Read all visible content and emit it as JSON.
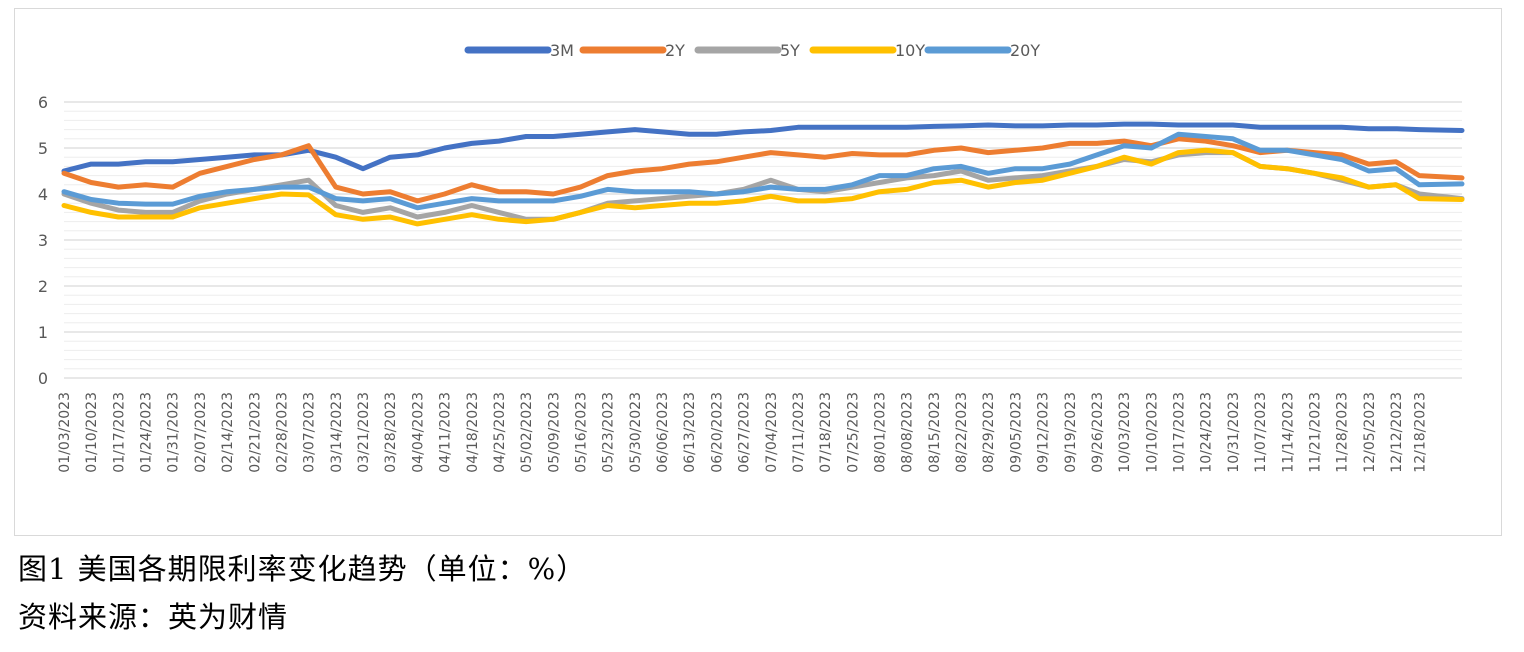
{
  "caption": {
    "figure_title": "图1 美国各期限利率变化趋势（单位：%）",
    "source": "资料来源：英为财情"
  },
  "chart_data": {
    "type": "line",
    "title": "",
    "xlabel": "",
    "ylabel": "",
    "ylim": [
      0,
      6
    ],
    "yticks": [
      "0",
      "1",
      "2",
      "3",
      "4",
      "5",
      "6"
    ],
    "grid": true,
    "legend_position": "top",
    "x_tick_labels": [
      "01/03/2023",
      "01/10/2023",
      "01/17/2023",
      "01/24/2023",
      "01/31/2023",
      "02/07/2023",
      "02/14/2023",
      "02/21/2023",
      "02/28/2023",
      "03/07/2023",
      "03/14/2023",
      "03/21/2023",
      "03/28/2023",
      "04/04/2023",
      "04/11/2023",
      "04/18/2023",
      "04/25/2023",
      "05/02/2023",
      "05/09/2023",
      "05/16/2023",
      "05/23/2023",
      "05/30/2023",
      "06/06/2023",
      "06/13/2023",
      "06/20/2023",
      "06/27/2023",
      "07/04/2023",
      "07/11/2023",
      "07/18/2023",
      "07/25/2023",
      "08/01/2023",
      "08/08/2023",
      "08/15/2023",
      "08/22/2023",
      "08/29/2023",
      "09/05/2023",
      "09/12/2023",
      "09/19/2023",
      "09/26/2023",
      "10/03/2023",
      "10/10/2023",
      "10/17/2023",
      "10/24/2023",
      "10/31/2023",
      "11/07/2023",
      "11/14/2023",
      "11/21/2023",
      "11/28/2023",
      "12/05/2023",
      "12/12/2023",
      "12/18/2023"
    ],
    "x": [
      "01/03/2023",
      "01/10/2023",
      "01/17/2023",
      "01/24/2023",
      "01/31/2023",
      "02/07/2023",
      "02/14/2023",
      "02/21/2023",
      "02/28/2023",
      "03/07/2023",
      "03/14/2023",
      "03/21/2023",
      "03/28/2023",
      "04/04/2023",
      "04/11/2023",
      "04/18/2023",
      "04/25/2023",
      "05/02/2023",
      "05/09/2023",
      "05/16/2023",
      "05/23/2023",
      "05/30/2023",
      "06/06/2023",
      "06/13/2023",
      "06/20/2023",
      "06/27/2023",
      "07/04/2023",
      "07/11/2023",
      "07/18/2023",
      "07/25/2023",
      "08/01/2023",
      "08/08/2023",
      "08/15/2023",
      "08/22/2023",
      "08/29/2023",
      "09/05/2023",
      "09/12/2023",
      "09/19/2023",
      "09/26/2023",
      "10/03/2023",
      "10/10/2023",
      "10/17/2023",
      "10/24/2023",
      "10/31/2023",
      "11/07/2023",
      "11/14/2023",
      "11/21/2023",
      "11/28/2023",
      "12/05/2023",
      "12/12/2023",
      "12/18/2023",
      "12/29/2023"
    ],
    "series": [
      {
        "name": "3M",
        "color": "#4472C4",
        "values": [
          4.5,
          4.65,
          4.65,
          4.7,
          4.7,
          4.75,
          4.8,
          4.85,
          4.85,
          4.95,
          4.8,
          4.55,
          4.8,
          4.85,
          5.0,
          5.1,
          5.15,
          5.25,
          5.25,
          5.3,
          5.35,
          5.4,
          5.35,
          5.3,
          5.3,
          5.35,
          5.38,
          5.45,
          5.45,
          5.45,
          5.45,
          5.45,
          5.47,
          5.48,
          5.5,
          5.48,
          5.48,
          5.5,
          5.5,
          5.52,
          5.52,
          5.5,
          5.5,
          5.5,
          5.45,
          5.45,
          5.45,
          5.45,
          5.42,
          5.42,
          5.4,
          5.38
        ]
      },
      {
        "name": "2Y",
        "color": "#ED7D31",
        "values": [
          4.45,
          4.25,
          4.15,
          4.2,
          4.15,
          4.45,
          4.6,
          4.75,
          4.85,
          5.05,
          4.15,
          4.0,
          4.05,
          3.85,
          4.0,
          4.2,
          4.05,
          4.05,
          4.0,
          4.15,
          4.4,
          4.5,
          4.55,
          4.65,
          4.7,
          4.8,
          4.9,
          4.85,
          4.8,
          4.88,
          4.85,
          4.85,
          4.95,
          5.0,
          4.9,
          4.95,
          5.0,
          5.1,
          5.1,
          5.15,
          5.05,
          5.2,
          5.15,
          5.05,
          4.9,
          4.95,
          4.9,
          4.85,
          4.65,
          4.7,
          4.4,
          4.35
        ]
      },
      {
        "name": "5Y",
        "color": "#A5A5A5",
        "values": [
          4.0,
          3.8,
          3.65,
          3.6,
          3.6,
          3.85,
          4.0,
          4.1,
          4.2,
          4.3,
          3.75,
          3.6,
          3.7,
          3.5,
          3.6,
          3.75,
          3.6,
          3.45,
          3.45,
          3.6,
          3.8,
          3.85,
          3.9,
          3.95,
          4.0,
          4.1,
          4.3,
          4.1,
          4.05,
          4.15,
          4.25,
          4.35,
          4.4,
          4.5,
          4.3,
          4.35,
          4.4,
          4.5,
          4.6,
          4.75,
          4.7,
          4.85,
          4.9,
          4.9,
          4.6,
          4.55,
          4.45,
          4.3,
          4.15,
          4.2,
          4.0,
          3.9
        ]
      },
      {
        "name": "10Y",
        "color": "#FFC000",
        "values": [
          3.75,
          3.6,
          3.5,
          3.5,
          3.5,
          3.7,
          3.8,
          3.9,
          4.0,
          3.98,
          3.55,
          3.45,
          3.5,
          3.35,
          3.45,
          3.55,
          3.45,
          3.4,
          3.45,
          3.6,
          3.75,
          3.7,
          3.75,
          3.8,
          3.8,
          3.85,
          3.95,
          3.85,
          3.85,
          3.9,
          4.05,
          4.1,
          4.25,
          4.3,
          4.15,
          4.25,
          4.3,
          4.45,
          4.6,
          4.8,
          4.65,
          4.9,
          4.95,
          4.9,
          4.6,
          4.55,
          4.45,
          4.35,
          4.15,
          4.2,
          3.9,
          3.88
        ]
      },
      {
        "name": "20Y",
        "color": "#5B9BD5",
        "values": [
          4.05,
          3.88,
          3.8,
          3.78,
          3.78,
          3.95,
          4.05,
          4.1,
          4.15,
          4.15,
          3.9,
          3.85,
          3.9,
          3.7,
          3.8,
          3.9,
          3.85,
          3.85,
          3.85,
          3.95,
          4.1,
          4.05,
          4.05,
          4.05,
          4.0,
          4.05,
          4.15,
          4.1,
          4.1,
          4.2,
          4.4,
          4.4,
          4.55,
          4.6,
          4.45,
          4.55,
          4.55,
          4.65,
          4.85,
          5.05,
          5.0,
          5.3,
          5.25,
          5.2,
          4.95,
          4.95,
          4.85,
          4.75,
          4.5,
          4.55,
          4.2,
          4.22
        ]
      }
    ]
  }
}
